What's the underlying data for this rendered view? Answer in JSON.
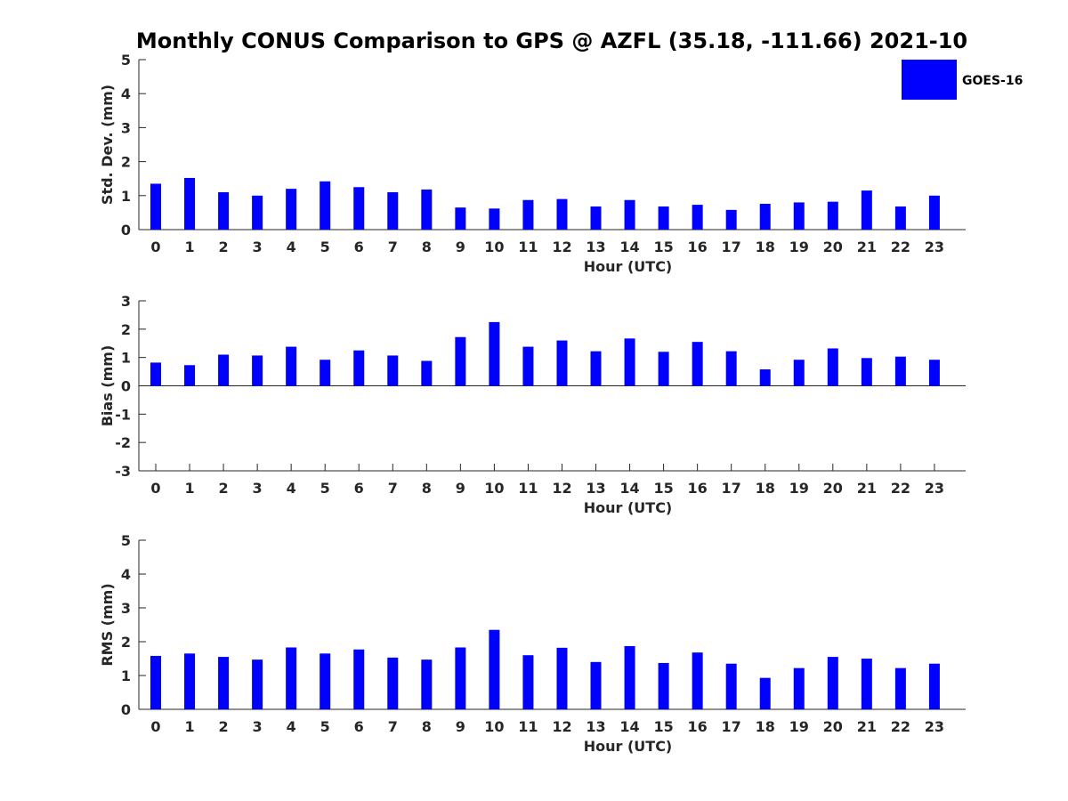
{
  "title": "Monthly CONUS Comparison to GPS @ AZFL (35.18, -111.66) 2021-10",
  "legend": {
    "label": "GOES-16",
    "color": "#0000ff"
  },
  "colors": {
    "bar": "#0000ff",
    "axis": "#262626"
  },
  "chart_data": [
    {
      "type": "bar",
      "id": "std",
      "categories": [
        "0",
        "1",
        "2",
        "3",
        "4",
        "5",
        "6",
        "7",
        "8",
        "9",
        "10",
        "11",
        "12",
        "13",
        "14",
        "15",
        "16",
        "17",
        "18",
        "19",
        "20",
        "21",
        "22",
        "23"
      ],
      "series": [
        {
          "name": "GOES-16",
          "values": [
            1.35,
            1.52,
            1.1,
            1.0,
            1.2,
            1.42,
            1.25,
            1.1,
            1.18,
            0.65,
            0.62,
            0.87,
            0.9,
            0.68,
            0.87,
            0.68,
            0.73,
            0.58,
            0.76,
            0.8,
            0.82,
            1.15,
            0.68,
            1.0
          ]
        }
      ],
      "xlabel": "Hour (UTC)",
      "ylabel": "Std. Dev. (mm)",
      "ylim": [
        0,
        5
      ],
      "yticks": [
        0,
        1,
        2,
        3,
        4,
        5
      ],
      "grid": false,
      "legend": "top-right"
    },
    {
      "type": "bar",
      "id": "bias",
      "categories": [
        "0",
        "1",
        "2",
        "3",
        "4",
        "5",
        "6",
        "7",
        "8",
        "9",
        "10",
        "11",
        "12",
        "13",
        "14",
        "15",
        "16",
        "17",
        "18",
        "19",
        "20",
        "21",
        "22",
        "23"
      ],
      "series": [
        {
          "name": "GOES-16",
          "values": [
            0.82,
            0.73,
            1.1,
            1.07,
            1.38,
            0.92,
            1.25,
            1.07,
            0.88,
            1.72,
            2.25,
            1.38,
            1.6,
            1.22,
            1.67,
            1.2,
            1.55,
            1.22,
            0.58,
            0.92,
            1.32,
            0.98,
            1.03,
            0.92
          ]
        }
      ],
      "xlabel": "Hour (UTC)",
      "ylabel": "Bias (mm)",
      "ylim": [
        -3,
        3
      ],
      "yticks": [
        -3,
        -2,
        -1,
        0,
        1,
        2,
        3
      ],
      "grid": false
    },
    {
      "type": "bar",
      "id": "rms",
      "categories": [
        "0",
        "1",
        "2",
        "3",
        "4",
        "5",
        "6",
        "7",
        "8",
        "9",
        "10",
        "11",
        "12",
        "13",
        "14",
        "15",
        "16",
        "17",
        "18",
        "19",
        "20",
        "21",
        "22",
        "23"
      ],
      "series": [
        {
          "name": "GOES-16",
          "values": [
            1.58,
            1.65,
            1.55,
            1.47,
            1.83,
            1.65,
            1.77,
            1.53,
            1.47,
            1.83,
            2.35,
            1.6,
            1.82,
            1.4,
            1.87,
            1.37,
            1.68,
            1.35,
            0.93,
            1.22,
            1.55,
            1.5,
            1.22,
            1.35
          ]
        }
      ],
      "xlabel": "Hour (UTC)",
      "ylabel": "RMS (mm)",
      "ylim": [
        0,
        5
      ],
      "yticks": [
        0,
        1,
        2,
        3,
        4,
        5
      ],
      "grid": false
    }
  ]
}
